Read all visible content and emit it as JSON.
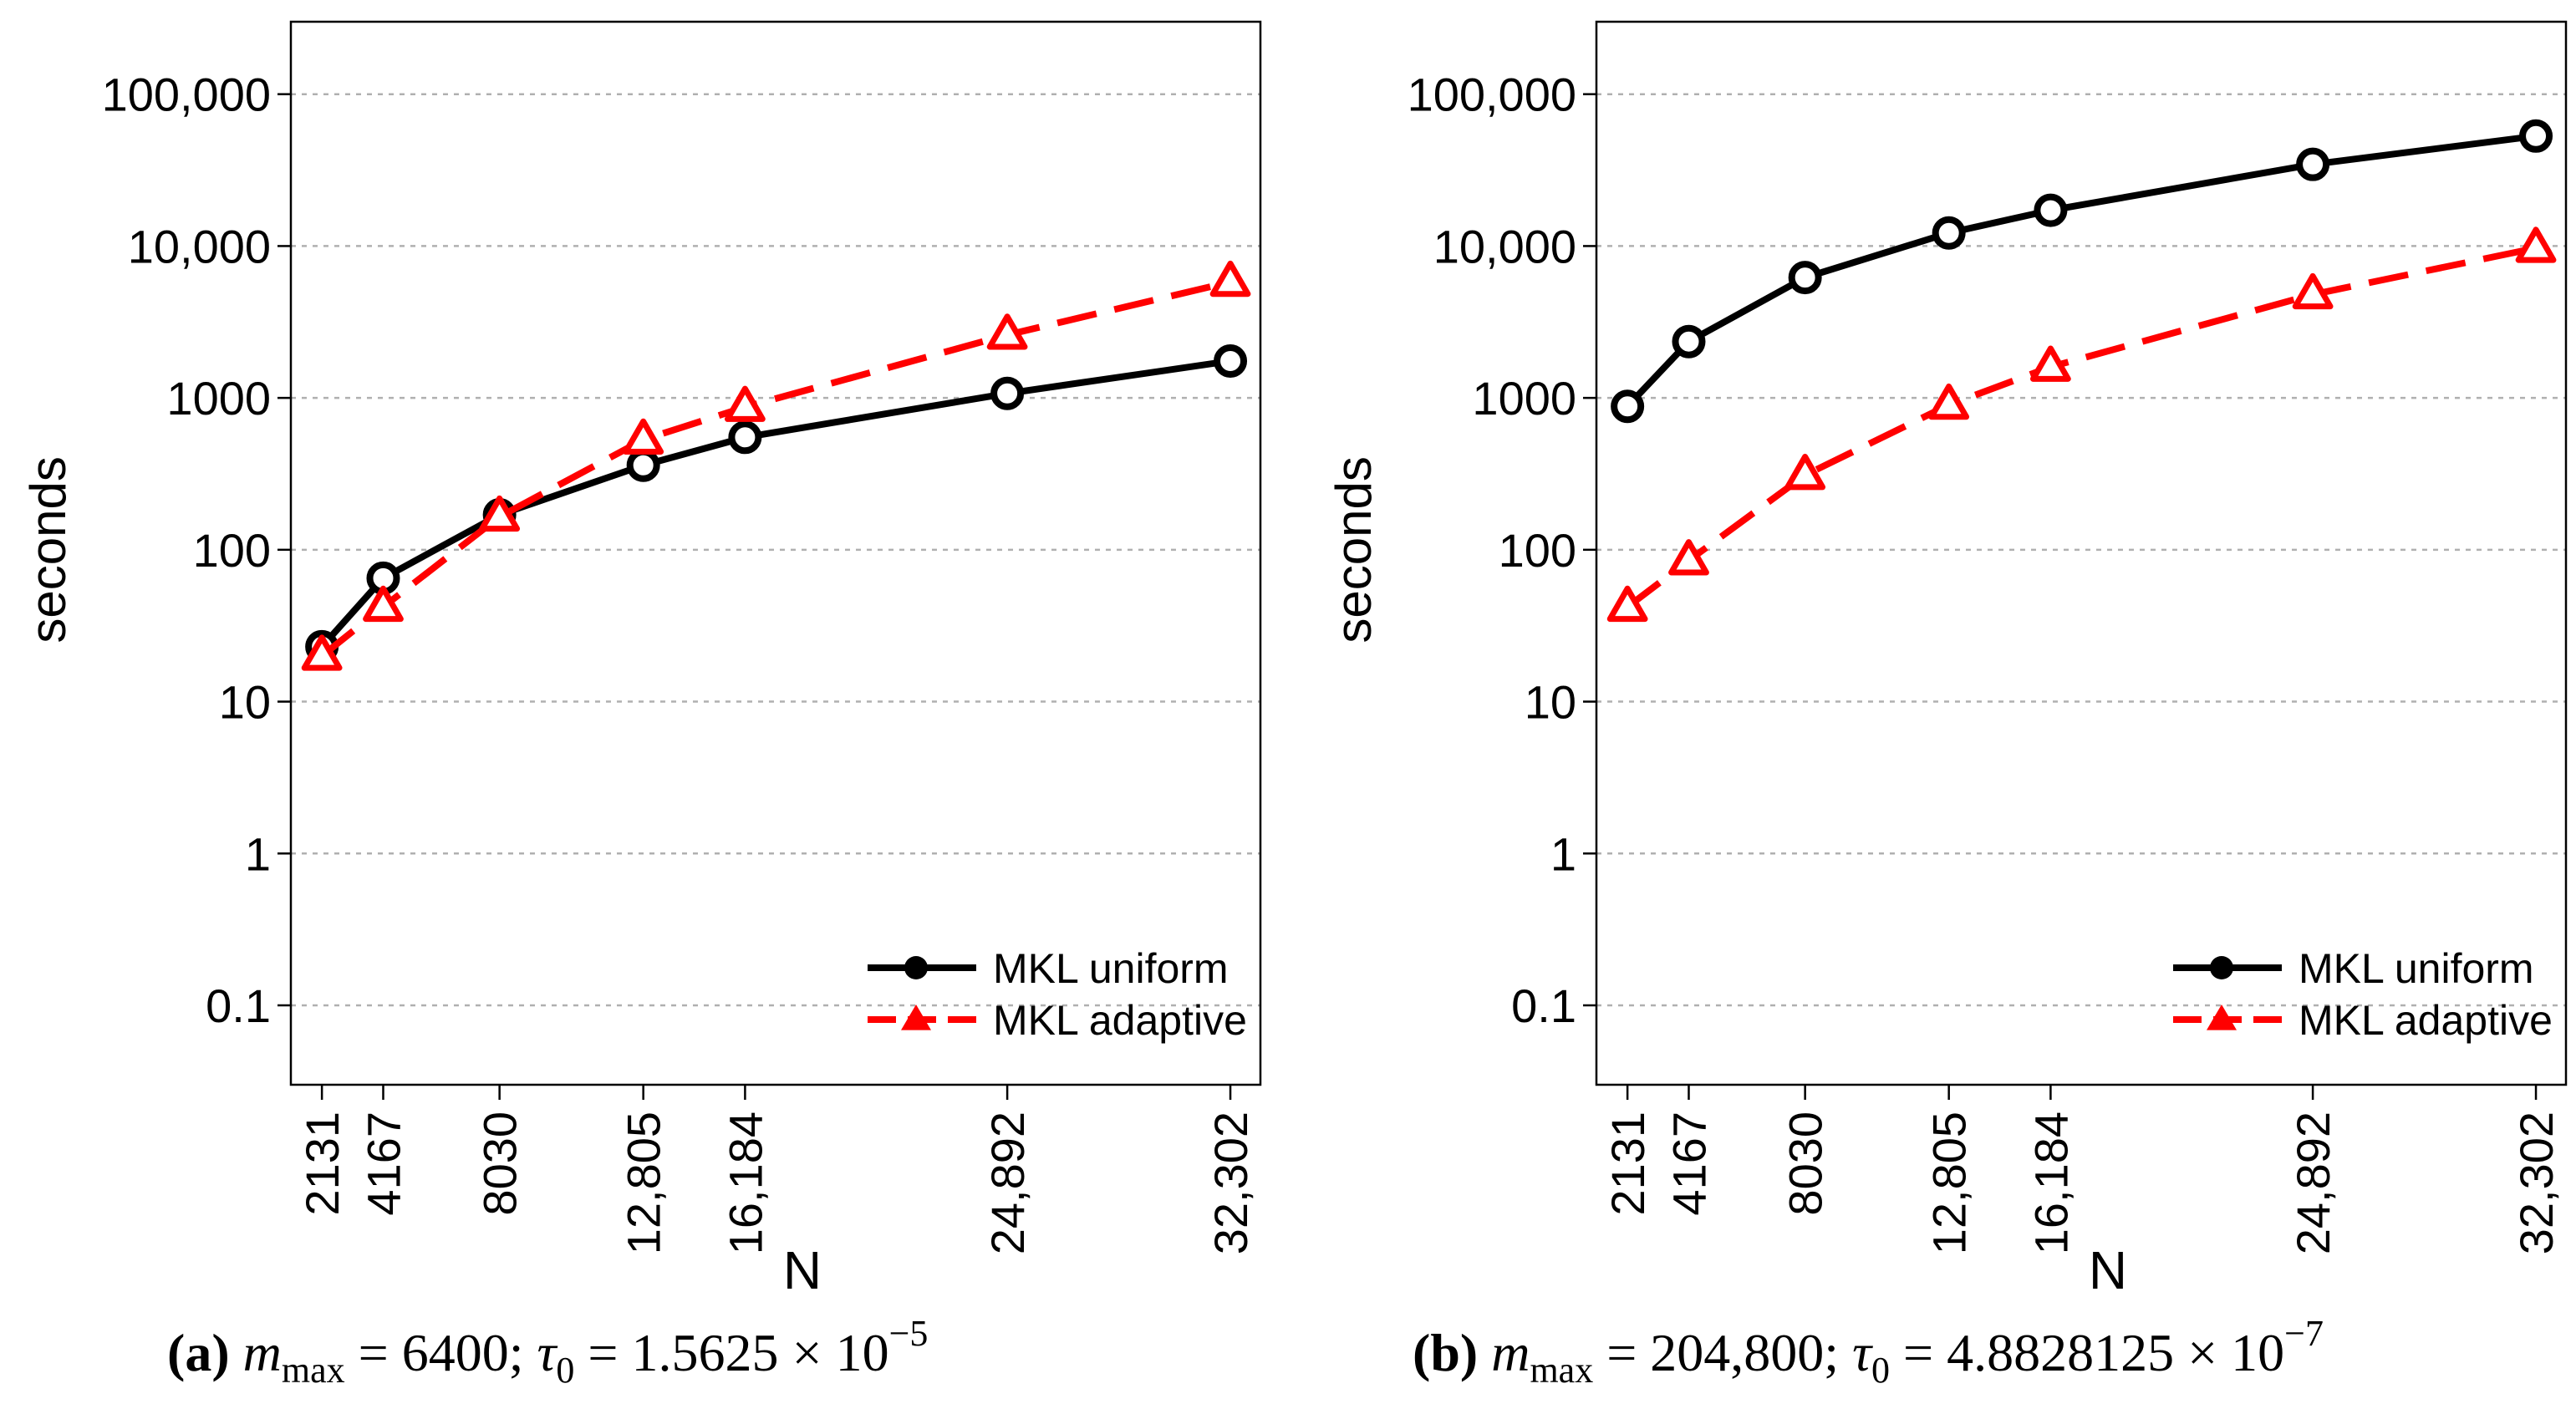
{
  "chart_data": [
    {
      "type": "line",
      "id": "a",
      "ylabel": "seconds",
      "xlabel": "N",
      "yscale": "log",
      "ylim": [
        0.03,
        300000
      ],
      "yticks": [
        0.1,
        1,
        10,
        100,
        1000,
        10000,
        100000
      ],
      "ytick_labels": [
        "0.1",
        "1",
        "10",
        "100",
        "1000",
        "10,000",
        "100,000"
      ],
      "x": [
        2131,
        4167,
        8030,
        12805,
        16184,
        24892,
        32302
      ],
      "xtick_labels": [
        "2131",
        "4167",
        "8030",
        "12,805",
        "16,184",
        "24,892",
        "32,302"
      ],
      "xlim": [
        1100,
        33300
      ],
      "grid": "horizontal dotted",
      "legend_position": "bottom-right",
      "series": [
        {
          "name": "MKL uniform",
          "style": "solid",
          "marker": "circle",
          "color": "#000000",
          "values": [
            23,
            65,
            170,
            360,
            550,
            1070,
            1750
          ]
        },
        {
          "name": "MKL adaptive",
          "style": "dashed",
          "marker": "triangle",
          "color": "#ff0000",
          "values": [
            20,
            42,
            165,
            530,
            870,
            2600,
            5800
          ]
        }
      ]
    },
    {
      "type": "line",
      "id": "b",
      "ylabel": "seconds",
      "xlabel": "N",
      "yscale": "log",
      "ylim": [
        0.03,
        300000
      ],
      "yticks": [
        0.1,
        1,
        10,
        100,
        1000,
        10000,
        100000
      ],
      "ytick_labels": [
        "0.1",
        "1",
        "10",
        "100",
        "1000",
        "10,000",
        "100,000"
      ],
      "x": [
        2131,
        4167,
        8030,
        12805,
        16184,
        24892,
        32302
      ],
      "xtick_labels": [
        "2131",
        "4167",
        "8030",
        "12,805",
        "16,184",
        "24,892",
        "32,302"
      ],
      "xlim": [
        1100,
        33300
      ],
      "grid": "horizontal dotted",
      "legend_position": "bottom-right",
      "series": [
        {
          "name": "MKL uniform",
          "style": "solid",
          "marker": "circle",
          "color": "#000000",
          "values": [
            880,
            2350,
            6200,
            12200,
            17200,
            34500,
            53000
          ]
        },
        {
          "name": "MKL adaptive",
          "style": "dashed",
          "marker": "triangle",
          "color": "#ff0000",
          "values": [
            42,
            85,
            310,
            900,
            1600,
            4800,
            9700
          ]
        }
      ]
    }
  ],
  "captions": [
    {
      "label": "(a)",
      "m_symbol": "m",
      "m_sub": "max",
      "m_value": "6400",
      "tau_symbol": "τ",
      "tau_sub": "0",
      "tau_mantissa": "1.5625",
      "tau_exponent": "−5"
    },
    {
      "label": "(b)",
      "m_symbol": "m",
      "m_sub": "max",
      "m_value": "204,800",
      "tau_symbol": "τ",
      "tau_sub": "0",
      "tau_mantissa": "4.8828125",
      "tau_exponent": "−7"
    }
  ]
}
